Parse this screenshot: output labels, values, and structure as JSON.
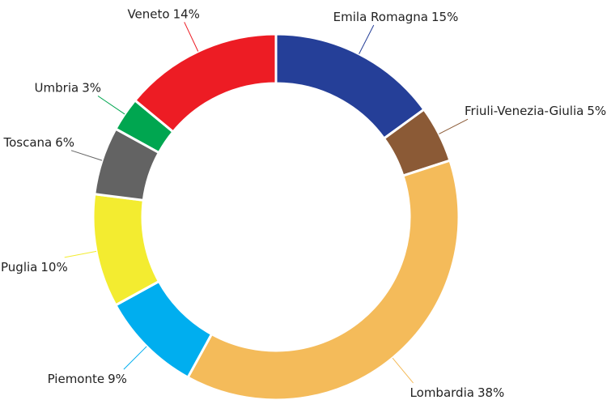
{
  "chart_data": {
    "type": "pie",
    "categories": [
      "Emila Romagna",
      "Friuli-Venezia-Giulia",
      "Lombardia",
      "Piemonte",
      "Puglia",
      "Toscana",
      "Umbria",
      "Veneto"
    ],
    "values": [
      15,
      5,
      38,
      9,
      10,
      6,
      3,
      14
    ],
    "value_labels": [
      "15%",
      "5%",
      "38%",
      "9%",
      "10%",
      "6%",
      "3%",
      "14%"
    ],
    "colors": [
      "#253f98",
      "#8b5a36",
      "#f4bb5a",
      "#00aeef",
      "#f3ec30",
      "#636363",
      "#00a650",
      "#ed1c24"
    ]
  }
}
